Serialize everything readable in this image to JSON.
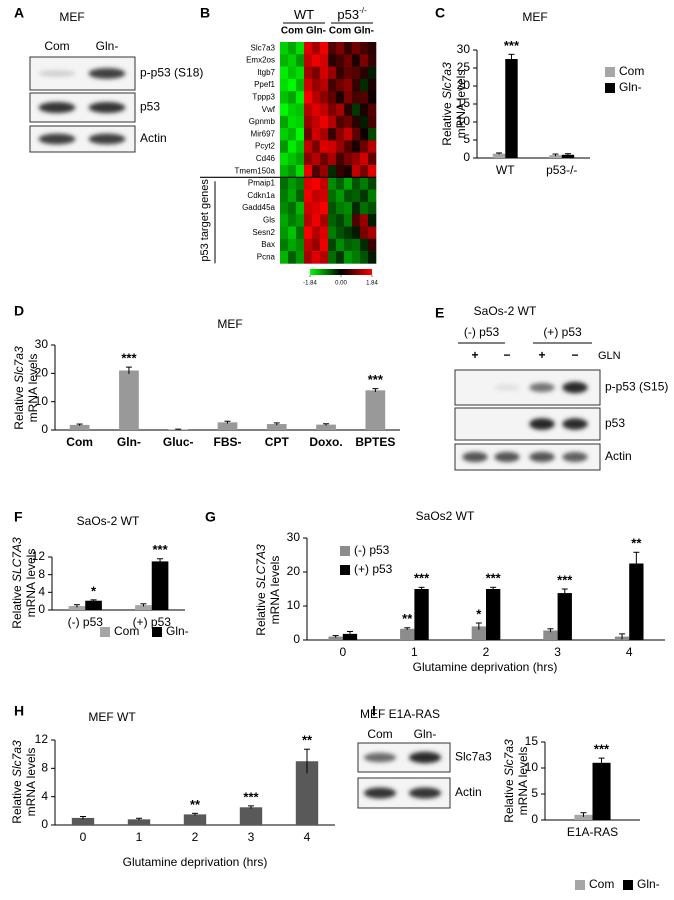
{
  "chart_data": [
    {
      "type": "heatmap",
      "panel": "B",
      "groups": [
        {
          "name": "WT",
          "columns": [
            "Com",
            "Gln-"
          ]
        },
        {
          "name": "p53",
          "sup": "-/-",
          "columns": [
            "Com",
            "Gln-"
          ]
        }
      ],
      "rows": [
        "Slc7a3",
        "Emx2os",
        "Itgb7",
        "Ppef1",
        "Tppp3",
        "Vwf",
        "Gpnmb",
        "Mir697",
        "Pcyt2",
        "Cd46",
        "Tmem150a",
        "Pmaip1",
        "Cdkn1a",
        "Gadd45a",
        "Gls",
        "Sesn2",
        "Bax",
        "Pcna"
      ],
      "side_label": "p53 target genes",
      "zlim": [
        -1.84,
        1.84
      ],
      "colors": [
        "#00ff00",
        "#000000",
        "#ff0000"
      ],
      "colorbar_ticks": [
        -1.84,
        {
          "value": 0,
          "label": "0.00"
        },
        1.84
      ],
      "values": [
        [
          -1.5,
          -1.2,
          -1.6,
          1.6,
          1.2,
          1.7,
          0.6,
          0.9,
          0.4,
          0.8,
          0.5,
          0.3
        ],
        [
          -1.3,
          -1.5,
          -1.1,
          1.4,
          1.7,
          1.5,
          0.3,
          0.5,
          0.8,
          0.2,
          0.9,
          0.4
        ],
        [
          -1.7,
          -1.4,
          -1.6,
          1.2,
          0.9,
          1.5,
          1.1,
          0.4,
          0.7,
          0.6,
          0.3,
          -0.2
        ],
        [
          -1.6,
          -1.8,
          -1.3,
          1.5,
          1.1,
          1.3,
          0.5,
          0.8,
          1.0,
          0.4,
          -0.3,
          0.2
        ],
        [
          -1.4,
          -1.2,
          -1.7,
          1.8,
          1.3,
          1.0,
          0.7,
          0.2,
          0.9,
          0.5,
          0.6,
          0.1
        ],
        [
          -1.8,
          -1.5,
          -1.4,
          1.3,
          1.6,
          1.4,
          0.9,
          1.2,
          0.3,
          -0.4,
          0.2,
          0.6
        ],
        [
          -1.2,
          -1.6,
          -1.5,
          1.1,
          1.4,
          1.7,
          1.3,
          0.6,
          0.8,
          0.3,
          -0.2,
          0.5
        ],
        [
          -1.5,
          -1.3,
          -1.8,
          0.8,
          1.5,
          1.2,
          0.4,
          1.0,
          1.4,
          0.7,
          0.1,
          -0.5
        ],
        [
          -1.1,
          -1.7,
          -1.4,
          1.4,
          0.9,
          1.6,
          1.5,
          1.1,
          0.6,
          0.2,
          0.8,
          1.3
        ],
        [
          -1.6,
          -1.4,
          -1.2,
          1.0,
          1.3,
          0.8,
          1.2,
          0.5,
          0.9,
          1.1,
          1.5,
          0.7
        ],
        [
          -1.3,
          -1.1,
          -1.6,
          1.7,
          0.6,
          1.1,
          -0.3,
          0.4,
          0.2,
          1.4,
          0.9,
          1.6
        ],
        [
          -0.8,
          -1.1,
          -0.9,
          1.6,
          1.8,
          1.4,
          -1.0,
          -0.7,
          -1.2,
          -0.6,
          -0.9,
          -0.5
        ],
        [
          -0.9,
          -1.2,
          -0.7,
          1.7,
          1.4,
          1.5,
          -0.8,
          -1.1,
          -0.6,
          -0.7,
          -0.4,
          -0.9
        ],
        [
          -1.0,
          -0.8,
          -1.3,
          1.5,
          1.6,
          1.8,
          -0.6,
          -0.9,
          -1.0,
          -0.3,
          -0.8,
          -0.6
        ],
        [
          -1.2,
          -0.9,
          -1.1,
          1.3,
          1.7,
          1.2,
          -0.7,
          -0.5,
          -0.9,
          0.6,
          1.1,
          -0.2
        ],
        [
          -1.1,
          -1.4,
          -0.8,
          1.8,
          1.3,
          1.6,
          -0.9,
          -0.6,
          -0.4,
          -0.2,
          0.9,
          1.2
        ],
        [
          -0.9,
          -1.2,
          -1.0,
          1.4,
          1.1,
          1.7,
          -0.5,
          -1.0,
          -0.7,
          -0.8,
          -0.3,
          0.4
        ],
        [
          -1.3,
          -0.7,
          -1.1,
          1.2,
          1.6,
          1.3,
          -0.8,
          -0.4,
          -1.1,
          -0.9,
          -0.6,
          -0.2
        ]
      ]
    },
    {
      "type": "bar",
      "panel": "C",
      "title": "MEF",
      "ylabel": {
        "prefix": "Relative ",
        "gene": "Slc7a3",
        "line2": "mRNA levels"
      },
      "categories": [
        "WT",
        "p53-/-"
      ],
      "ylim": [
        0,
        30
      ],
      "yticks": [
        0,
        5,
        10,
        15,
        20,
        25,
        30
      ],
      "series": [
        {
          "name": "Com",
          "color": "#a6a6a6",
          "values": [
            1.2,
            0.8
          ],
          "errors": [
            0.2,
            0.3
          ],
          "stars": [
            null,
            null
          ]
        },
        {
          "name": "Gln-",
          "color": "#000000",
          "values": [
            27.5,
            0.9
          ],
          "errors": [
            1.3,
            0.3
          ],
          "stars": [
            "***",
            null
          ]
        }
      ]
    },
    {
      "type": "bar",
      "panel": "D",
      "title": "MEF",
      "ylabel": {
        "prefix": "Relative ",
        "gene": "Slc7a3",
        "line2": "mRNA levels"
      },
      "categories": [
        "Com",
        "Gln-",
        "Gluc-",
        "FBS-",
        "CPT",
        "Doxo.",
        "BPTES"
      ],
      "ylim": [
        0,
        30
      ],
      "yticks": [
        0,
        10,
        20,
        30
      ],
      "color": "#999999",
      "values": [
        1.8,
        21,
        0.2,
        2.7,
        2.1,
        1.9,
        14
      ],
      "errors": [
        0.3,
        1.2,
        0.1,
        0.4,
        0.4,
        0.3,
        0.6
      ],
      "stars": [
        null,
        "***",
        null,
        null,
        null,
        null,
        "***"
      ]
    },
    {
      "type": "bar",
      "panel": "F",
      "title": "SaOs-2 WT",
      "ylabel": {
        "prefix": "Relative ",
        "gene": "SLC7A3",
        "line2": "mRNA levels"
      },
      "categories": [
        "(-) p53",
        "(+) p53"
      ],
      "ylim": [
        0,
        12
      ],
      "yticks": [
        0,
        4,
        8,
        12
      ],
      "series": [
        {
          "name": "Com",
          "color": "#a6a6a6",
          "values": [
            0.9,
            1.1
          ],
          "errors": [
            0.3,
            0.3
          ],
          "stars": [
            null,
            null
          ]
        },
        {
          "name": "Gln-",
          "color": "#000000",
          "values": [
            2.1,
            11
          ],
          "errors": [
            0.2,
            0.6
          ],
          "stars": [
            "*",
            "***"
          ]
        }
      ]
    },
    {
      "type": "bar",
      "panel": "G",
      "title": "SaOs2 WT",
      "ylabel": {
        "prefix": "Relative ",
        "gene": "SLC7A3",
        "line2": "mRNA levels"
      },
      "xlabel": "Glutamine deprivation (hrs)",
      "categories": [
        "0",
        "1",
        "2",
        "3",
        "4"
      ],
      "ylim": [
        0,
        30
      ],
      "yticks": [
        0,
        10,
        20,
        30
      ],
      "series": [
        {
          "name": "(-) p53",
          "color": "#8c8c8c",
          "values": [
            1,
            3.3,
            4,
            2.8,
            1
          ],
          "errors": [
            0.3,
            0.3,
            1,
            0.5,
            0.8
          ],
          "stars": [
            null,
            "**",
            "*",
            null,
            null
          ]
        },
        {
          "name": "(+) p53",
          "color": "#000000",
          "values": [
            1.8,
            15,
            15,
            13.8,
            22.5
          ],
          "errors": [
            0.7,
            0.5,
            0.5,
            1.2,
            3.3
          ],
          "stars": [
            null,
            "***",
            "***",
            "***",
            "**"
          ]
        }
      ]
    },
    {
      "type": "bar",
      "panel": "H",
      "title": "MEF WT",
      "ylabel": {
        "prefix": "Relative ",
        "gene": "Slc7a3",
        "line2": "mRNA levels"
      },
      "xlabel": "Glutamine deprivation (hrs)",
      "categories": [
        "0",
        "1",
        "2",
        "3",
        "4"
      ],
      "ylim": [
        0,
        12
      ],
      "yticks": [
        0,
        4,
        8,
        12
      ],
      "color": "#595959",
      "values": [
        1,
        0.8,
        1.5,
        2.5,
        9
      ],
      "errors": [
        0.2,
        0.15,
        0.15,
        0.2,
        1.7
      ],
      "stars": [
        null,
        null,
        "**",
        "***",
        "**"
      ]
    },
    {
      "type": "bar",
      "ylabel": {
        "prefix": "Relative ",
        "gene": "Slc7a3",
        "line2": "mRNA levels"
      },
      "categories": [
        "E1A-RAS"
      ],
      "ylim": [
        0,
        15
      ],
      "yticks": [
        0,
        5,
        10,
        15
      ],
      "series": [
        {
          "name": "Com",
          "color": "#a6a6a6",
          "values": [
            1
          ],
          "errors": [
            0.4
          ],
          "stars": [
            null
          ]
        },
        {
          "name": "Gln-",
          "color": "#000000",
          "values": [
            11
          ],
          "errors": [
            0.9
          ],
          "stars": [
            "***"
          ]
        }
      ]
    }
  ],
  "blots": [
    {
      "panel": "A",
      "title": "MEF",
      "lanes": [
        "Com",
        "Gln-"
      ],
      "bands": [
        "p-p53 (S18)",
        "p53",
        "Actin"
      ]
    },
    {
      "panel": "E",
      "title": "SaOs-2 WT",
      "groups": [
        "(-) p53",
        "(+) p53"
      ],
      "lanes": [
        "+",
        "−",
        "+",
        "−"
      ],
      "lane_label": "GLN",
      "bands": [
        "p-p53 (S15)",
        "p53",
        "Actin"
      ]
    },
    {
      "panel": "I",
      "title": "MEF E1A-RAS",
      "lanes": [
        "Com",
        "Gln-"
      ],
      "bands": [
        "Slc7a3",
        "Actin"
      ]
    }
  ]
}
